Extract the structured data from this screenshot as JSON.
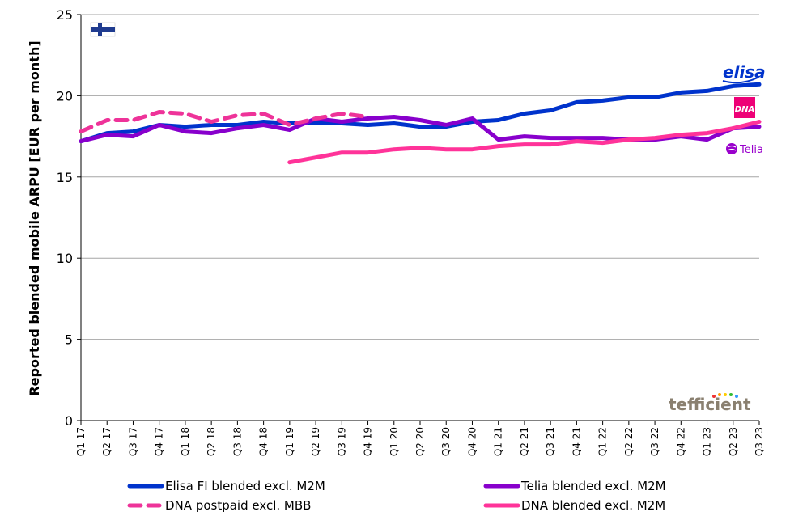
{
  "chart_data": {
    "type": "line",
    "ylabel": "Reported blended mobile ARPU [EUR per month]",
    "ylim": [
      0,
      25
    ],
    "yticks": [
      0,
      5,
      10,
      15,
      20,
      25
    ],
    "grid": "horizontal",
    "legend_position": "bottom",
    "categories": [
      "Q1 17",
      "Q2 17",
      "Q3 17",
      "Q4 17",
      "Q1 18",
      "Q2 18",
      "Q3 18",
      "Q4 18",
      "Q1 19",
      "Q2 19",
      "Q3 19",
      "Q4 19",
      "Q1 20",
      "Q2 20",
      "Q3 20",
      "Q4 20",
      "Q1 21",
      "Q2 21",
      "Q3 21",
      "Q4 21",
      "Q1 22",
      "Q2 22",
      "Q3 22",
      "Q4 22",
      "Q1 23",
      "Q2 23",
      "Q3 23"
    ],
    "series": [
      {
        "name": "Elisa FI blended excl. M2M",
        "color": "#0033cc",
        "dash": false,
        "values": [
          17.2,
          17.7,
          17.8,
          18.2,
          18.1,
          18.2,
          18.2,
          18.4,
          18.3,
          18.3,
          18.3,
          18.2,
          18.3,
          18.1,
          18.1,
          18.4,
          18.5,
          18.9,
          19.1,
          19.6,
          19.7,
          19.9,
          19.9,
          20.2,
          20.3,
          20.6,
          20.7
        ]
      },
      {
        "name": "Telia blended excl. M2M",
        "color": "#8800cc",
        "dash": false,
        "values": [
          17.2,
          17.6,
          17.5,
          18.2,
          17.8,
          17.7,
          18.0,
          18.2,
          17.9,
          18.6,
          18.4,
          18.6,
          18.7,
          18.5,
          18.2,
          18.6,
          17.3,
          17.5,
          17.4,
          17.4,
          17.4,
          17.3,
          17.3,
          17.5,
          17.3,
          18.0,
          18.1
        ]
      },
      {
        "name": "DNA postpaid excl. MBB",
        "color": "#ee3399",
        "dash": true,
        "values": [
          17.8,
          18.5,
          18.5,
          19.0,
          18.9,
          18.4,
          18.8,
          18.9,
          18.2,
          18.6,
          18.9,
          18.7,
          null,
          null,
          null,
          null,
          null,
          null,
          null,
          null,
          null,
          null,
          null,
          null,
          null,
          null,
          null
        ]
      },
      {
        "name": "DNA blended excl. M2M",
        "color": "#ff3399",
        "dash": false,
        "values": [
          null,
          null,
          null,
          null,
          null,
          null,
          null,
          null,
          15.9,
          16.2,
          16.5,
          16.5,
          16.7,
          16.8,
          16.7,
          16.7,
          16.9,
          17.0,
          17.0,
          17.2,
          17.1,
          17.3,
          17.4,
          17.6,
          17.7,
          18.0,
          18.4
        ]
      }
    ]
  },
  "logos": {
    "elisa": {
      "text": "elisa",
      "color": "#0033cc"
    },
    "dna": {
      "text": "DNA",
      "color": "#ee0077"
    },
    "telia": {
      "text": "Telia",
      "color": "#9900cc"
    },
    "tefficient": {
      "text": "tefficient",
      "color": "#8a8070"
    }
  },
  "flag": {
    "icon": "finland-flag",
    "cross_color": "#1f3b8f"
  }
}
